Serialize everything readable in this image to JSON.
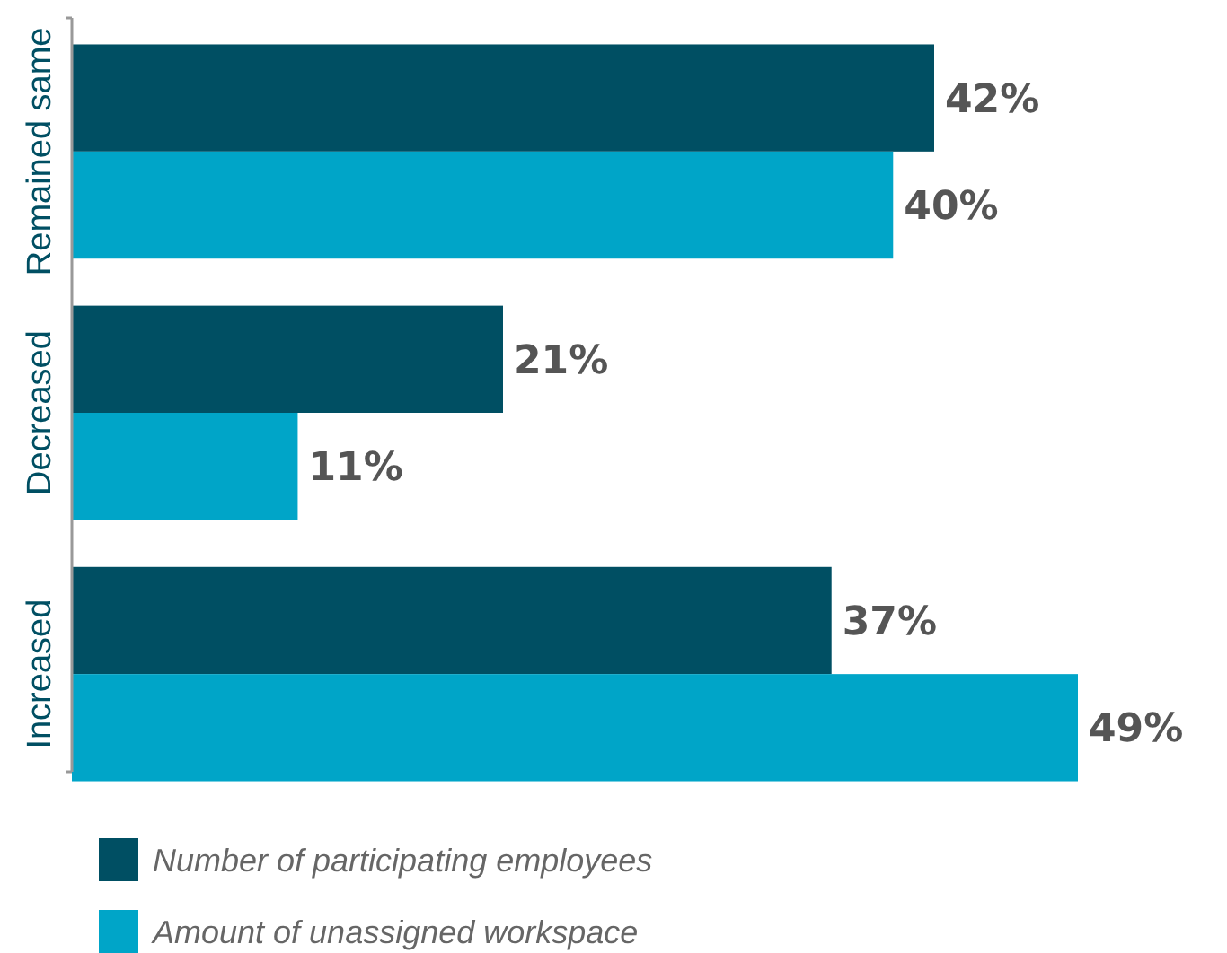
{
  "chart_data": {
    "type": "bar",
    "orientation": "horizontal",
    "categories": [
      "Remained same",
      "Decreased",
      "Increased"
    ],
    "series": [
      {
        "name": "Number of participating employees",
        "color": "#004f63",
        "values": [
          42,
          21,
          37
        ],
        "value_labels": [
          "42%",
          "21%",
          "37%"
        ]
      },
      {
        "name": "Amount of unassigned workspace",
        "color": "#00a5c8",
        "values": [
          40,
          11,
          49
        ],
        "value_labels": [
          "40%",
          "11%",
          "49%"
        ]
      }
    ],
    "legend": "bottom"
  }
}
